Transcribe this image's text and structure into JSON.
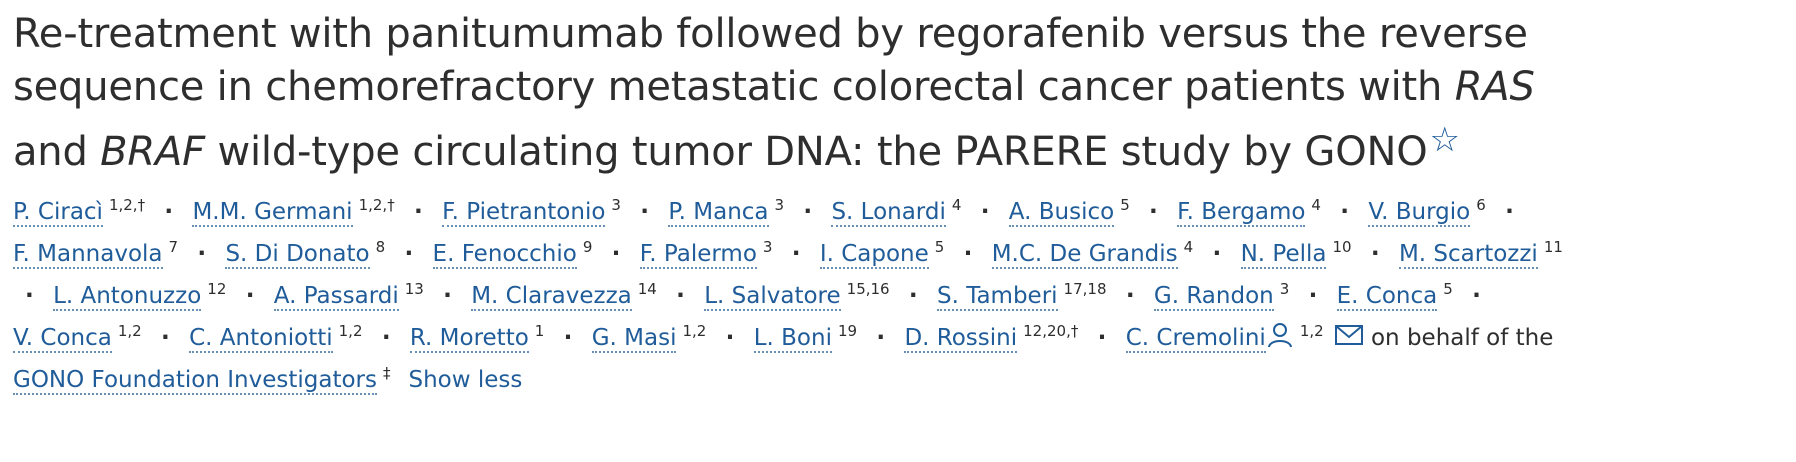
{
  "title": [
    "Re-treatment with panitumumab followed by regorafenib versus the reverse sequence in chemorefractory metastatic colorectal cancer patients with ",
    "RAS",
    " and ",
    "BRAF",
    " wild-type circulating tumor DNA: the PARERE study by GONO"
  ],
  "authors": [
    {
      "name": "P. Ciracì",
      "affiliations": "1,2,†"
    },
    {
      "name": "M.M. Germani",
      "affiliations": "1,2,†"
    },
    {
      "name": "F. Pietrantonio",
      "affiliations": "3"
    },
    {
      "name": "P. Manca",
      "affiliations": "3"
    },
    {
      "name": "S. Lonardi",
      "affiliations": "4"
    },
    {
      "name": "A. Busico",
      "affiliations": "5"
    },
    {
      "name": "F. Bergamo",
      "affiliations": "4"
    },
    {
      "name": "V. Burgio",
      "affiliations": "6"
    },
    {
      "name": "F. Mannavola",
      "affiliations": "7"
    },
    {
      "name": "S. Di Donato",
      "affiliations": "8"
    },
    {
      "name": "E. Fenocchio",
      "affiliations": "9"
    },
    {
      "name": "F. Palermo",
      "affiliations": "3"
    },
    {
      "name": "I. Capone",
      "affiliations": "5"
    },
    {
      "name": "M.C. De Grandis",
      "affiliations": "4"
    },
    {
      "name": "N. Pella",
      "affiliations": "10"
    },
    {
      "name": "M. Scartozzi",
      "affiliations": "11"
    },
    {
      "name": "L. Antonuzzo",
      "affiliations": "12"
    },
    {
      "name": "A. Passardi",
      "affiliations": "13"
    },
    {
      "name": "M. Claravezza",
      "affiliations": "14"
    },
    {
      "name": "L. Salvatore",
      "affiliations": "15,16"
    },
    {
      "name": "S. Tamberi",
      "affiliations": "17,18"
    },
    {
      "name": "G. Randon",
      "affiliations": "3"
    },
    {
      "name": "E. Conca",
      "affiliations": "5"
    },
    {
      "name": "V. Conca",
      "affiliations": "1,2"
    },
    {
      "name": "C. Antoniotti",
      "affiliations": "1,2"
    },
    {
      "name": "R. Moretto",
      "affiliations": "1"
    },
    {
      "name": "G. Masi",
      "affiliations": "1,2"
    },
    {
      "name": "L. Boni",
      "affiliations": "19"
    },
    {
      "name": "D. Rossini",
      "affiliations": "12,20,†"
    }
  ],
  "corresponding_author": {
    "name": "C. Cremolini",
    "affiliations": "1,2"
  },
  "group": {
    "prefix": "on behalf of the",
    "name": "GONO Foundation Investigators",
    "note": "‡"
  },
  "show_less": "Show less"
}
